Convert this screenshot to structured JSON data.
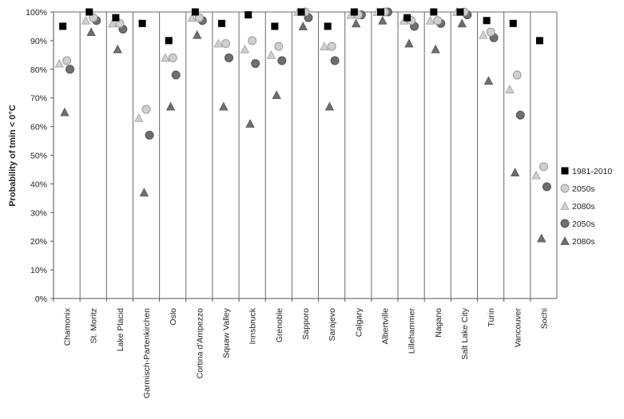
{
  "chart_data": {
    "type": "scatter",
    "ylabel": "Probability of tmin < 0°C",
    "ylim": [
      0,
      100
    ],
    "yticks": [
      "0%",
      "10%",
      "20%",
      "30%",
      "40%",
      "50%",
      "60%",
      "70%",
      "80%",
      "90%",
      "100%"
    ],
    "grid": "vertical separators between categories",
    "legend_position": "right",
    "categories": [
      "Chamonix",
      "St. Moritz",
      "Lake Placid",
      "Garmisch-Partenkirchen",
      "Oslo",
      "Cortina d'Ampezzo",
      "Squaw Valley",
      "Innsbruck",
      "Grenoble",
      "Sapporo",
      "Sarajevo",
      "Calgary",
      "Albertville",
      "Lillehammer",
      "Nagano",
      "Salt Lake City",
      "Turin",
      "Vancouver",
      "Sochi"
    ],
    "series": [
      {
        "name": "1981-2010",
        "marker": "square",
        "color": "#000000",
        "values": [
          95,
          100,
          98,
          96,
          90,
          100,
          96,
          99,
          95,
          100,
          95,
          100,
          100,
          98,
          100,
          100,
          97,
          96,
          90
        ]
      },
      {
        "name": "2050s",
        "marker": "circle",
        "color": "#cfcfcf",
        "values": [
          83,
          98,
          96,
          66,
          84,
          98,
          89,
          90,
          88,
          100,
          88,
          99,
          100,
          97,
          97,
          100,
          93,
          78,
          46
        ]
      },
      {
        "name": "2080s",
        "marker": "triangle",
        "color": "#cfcfcf",
        "values": [
          82,
          97,
          96,
          63,
          84,
          98,
          89,
          87,
          85,
          100,
          88,
          99,
          100,
          97,
          97,
          100,
          92,
          73,
          43
        ]
      },
      {
        "name": "2050s",
        "marker": "circle",
        "color": "#6e6e6e",
        "values": [
          80,
          97,
          94,
          57,
          78,
          97,
          84,
          82,
          83,
          98,
          83,
          99,
          100,
          95,
          96,
          99,
          91,
          64,
          39
        ]
      },
      {
        "name": "2080s",
        "marker": "triangle",
        "color": "#6e6e6e",
        "values": [
          65,
          93,
          87,
          37,
          67,
          92,
          67,
          61,
          71,
          95,
          67,
          96,
          97,
          89,
          87,
          96,
          76,
          44,
          21
        ]
      }
    ]
  }
}
